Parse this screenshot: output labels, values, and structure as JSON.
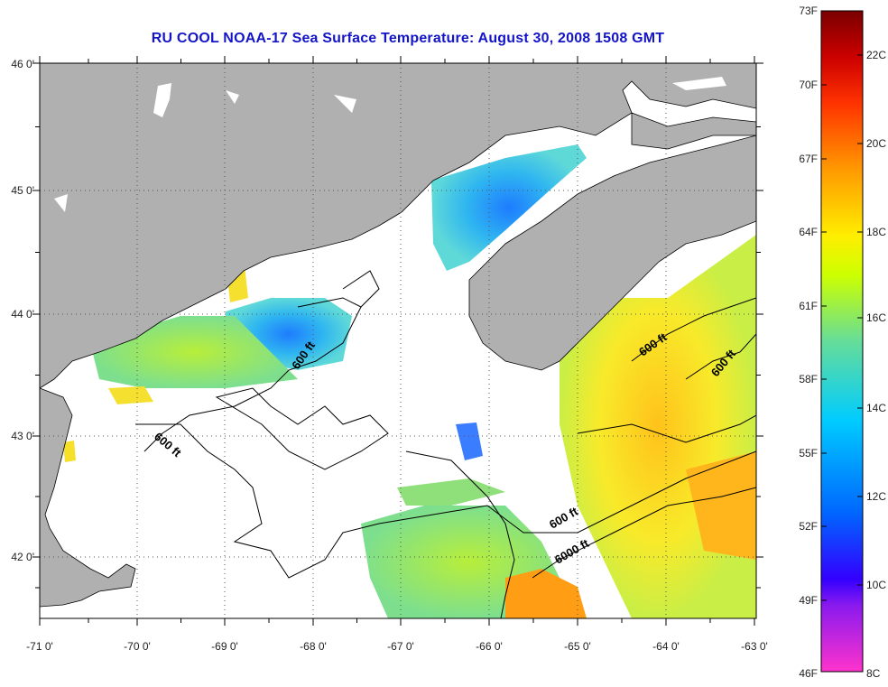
{
  "title": "RU COOL  NOAA-17  Sea Surface Temperature:  August 30, 2008 1508 GMT",
  "map": {
    "lon_labels": [
      "-71 0'",
      "-70 0'",
      "-69 0'",
      "-68 0'",
      "-67 0'",
      "-66 0'",
      "-65 0'",
      "-64 0'",
      "-63 0'"
    ],
    "lat_labels": [
      "46 0'",
      "45 0'",
      "44 0'",
      "43 0'",
      "42 0'"
    ],
    "contour_labels": [
      "600 ft",
      "600 ft",
      "600 ft",
      "600 ft",
      "600 ft",
      "6000 ft"
    ],
    "land_color": "#b0b0b0",
    "no_data_color": "#ffffff"
  },
  "colorbar": {
    "fahrenheit_ticks": [
      "73F",
      "70F",
      "67F",
      "64F",
      "61F",
      "58F",
      "55F",
      "52F",
      "49F",
      "46F"
    ],
    "celsius_ticks": [
      "22C",
      "20C",
      "18C",
      "16C",
      "14C",
      "12C",
      "10C",
      "8C"
    ],
    "colors": [
      "#ff33cc",
      "#3300ff",
      "#0066ff",
      "#00ccff",
      "#66dd99",
      "#ccff00",
      "#ffdd00",
      "#ff9900",
      "#ff3300",
      "#aa0000",
      "#7a0000"
    ]
  }
}
